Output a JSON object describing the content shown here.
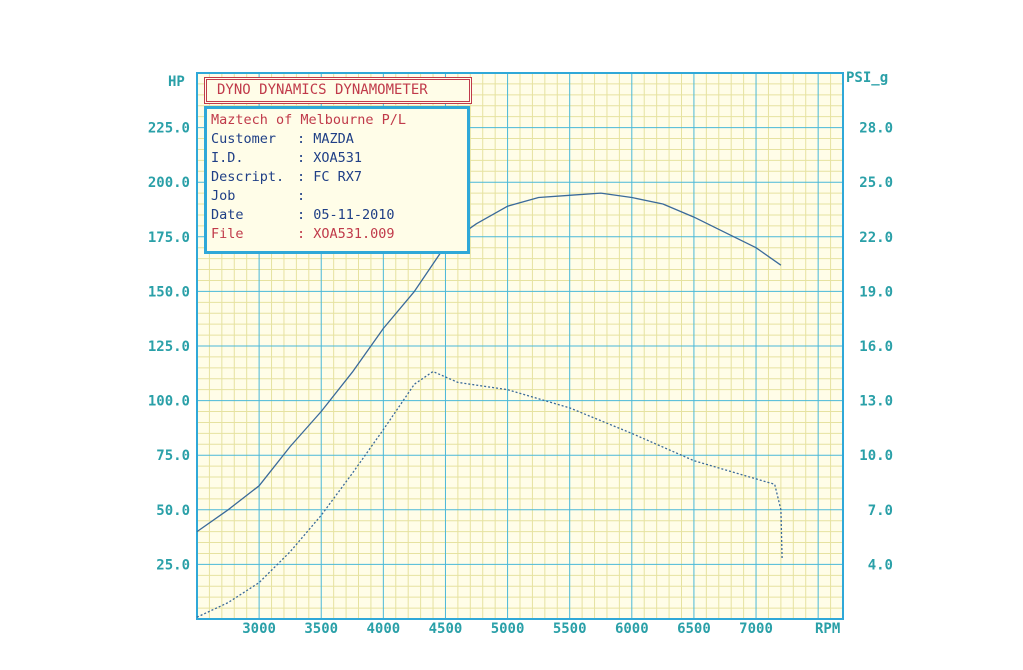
{
  "header": {
    "title": "DYNO DYNAMICS DYNAMOMETER"
  },
  "info": {
    "company": "Maztech of Melbourne P/L",
    "rows": [
      {
        "label": "Customer",
        "value": "MAZDA"
      },
      {
        "label": "I.D.",
        "value": "XOA531"
      },
      {
        "label": "Descript.",
        "value": "FC RX7"
      },
      {
        "label": "Job",
        "value": ""
      },
      {
        "label": "Date",
        "value": "05-11-2010"
      },
      {
        "label": "File",
        "value": "XOA531.009"
      }
    ]
  },
  "colors": {
    "grid_major": "#4ab8d8",
    "grid_minor": "#e6e2a0",
    "frame": "#2fa8d8",
    "plot_bg": "#fffde8",
    "curve": "#3a6a9a",
    "axis_text": "#2aa0a8",
    "title_red": "#c03a4a",
    "text_blue": "#1f3f86"
  },
  "chart_data": {
    "type": "line",
    "xlabel": "RPM",
    "ylabel": "HP",
    "y2label": "PSI_g",
    "xlim": [
      2500,
      7700
    ],
    "ylim": [
      0,
      250
    ],
    "y2lim": [
      1,
      31
    ],
    "x_ticks": [
      3000,
      3500,
      4000,
      4500,
      5000,
      5500,
      6000,
      6500,
      7000
    ],
    "y_ticks": [
      25.0,
      50.0,
      75.0,
      100.0,
      125.0,
      150.0,
      175.0,
      200.0,
      225.0
    ],
    "y2_ticks": [
      4.0,
      7.0,
      10.0,
      13.0,
      16.0,
      19.0,
      22.0,
      25.0,
      28.0
    ],
    "grid": true,
    "series": [
      {
        "axis": "left",
        "style": "solid",
        "x": [
          2500,
          2750,
          3000,
          3250,
          3500,
          3750,
          4000,
          4250,
          4500,
          4750,
          5000,
          5250,
          5500,
          5750,
          6000,
          6250,
          6500,
          6750,
          7000,
          7200
        ],
        "y": [
          40,
          50,
          61,
          79,
          95,
          113,
          133,
          150,
          171,
          181,
          189,
          193,
          194,
          195,
          193,
          190,
          184,
          177,
          170,
          162
        ]
      },
      {
        "axis": "right",
        "style": "dotted",
        "x": [
          2500,
          2750,
          3000,
          3250,
          3500,
          3750,
          4000,
          4250,
          4400,
          4600,
          5000,
          5500,
          6000,
          6500,
          7000,
          7150,
          7200,
          7210
        ],
        "y": [
          1.1,
          1.9,
          3.0,
          4.7,
          6.7,
          9.0,
          11.4,
          13.9,
          14.6,
          14.0,
          13.6,
          12.6,
          11.2,
          9.7,
          8.7,
          8.4,
          7.0,
          4.3
        ]
      }
    ]
  }
}
